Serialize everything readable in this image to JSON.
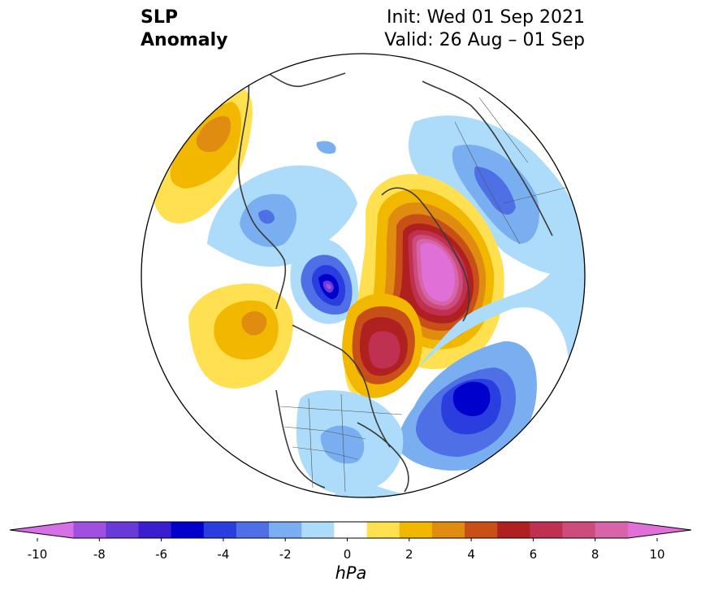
{
  "title": {
    "left_line1": "SLP",
    "left_line2": "Anomaly",
    "right_line1": "Init: Wed 01 Sep 2021",
    "right_line2": "Valid: 26 Aug – 01 Sep"
  },
  "colorbar": {
    "unit": "hPa",
    "levels": [
      -10,
      -9,
      -8,
      -7,
      -6,
      -5,
      -4,
      -3,
      -2,
      -1,
      1,
      2,
      3,
      4,
      5,
      6,
      7,
      8,
      9,
      10
    ],
    "tick_labels": [
      "-10",
      "-8",
      "-6",
      "-4",
      "-2",
      "0",
      "2",
      "4",
      "6",
      "8",
      "10"
    ],
    "colors": [
      "#d670e6",
      "#a050e0",
      "#6a3ad8",
      "#3a1ed0",
      "#0000cc",
      "#2a3ee0",
      "#4f6fe6",
      "#79aef0",
      "#acdcfa",
      "#ffffff",
      "#ffe050",
      "#f2b800",
      "#e08c10",
      "#c85018",
      "#b02020",
      "#c03050",
      "#cc4c7c",
      "#d864a8",
      "#e070d8"
    ],
    "extend": "both"
  },
  "map": {
    "projection": "north-polar-stereographic",
    "field": "sea-level-pressure-anomaly",
    "features": [
      {
        "name": "greenland-positive-anomaly",
        "sign": "positive",
        "peak": 10
      },
      {
        "name": "hudson-bay-positive-anomaly",
        "sign": "positive",
        "peak": 7
      },
      {
        "name": "north-pacific-positive-anomaly",
        "sign": "positive",
        "peak": 4
      },
      {
        "name": "siberia-positive-anomaly",
        "sign": "positive",
        "peak": 4
      },
      {
        "name": "north-atlantic-negative-anomaly",
        "sign": "negative",
        "peak": -6
      },
      {
        "name": "gulf-of-alaska-negative-anomaly",
        "sign": "negative",
        "peak": -9
      },
      {
        "name": "eurasia-negative-anomaly",
        "sign": "negative",
        "peak": -4
      }
    ]
  }
}
